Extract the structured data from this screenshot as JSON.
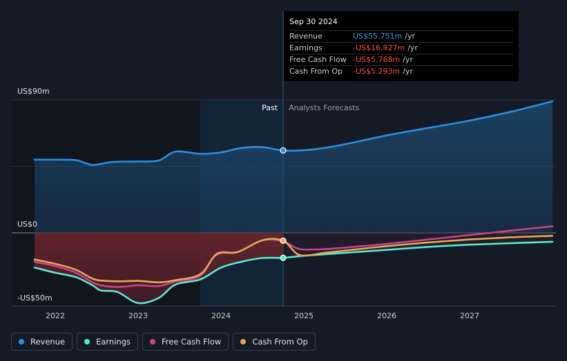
{
  "tooltip": {
    "date": "Sep 30 2024",
    "rows": [
      {
        "label": "Revenue",
        "value": "US$55.751m",
        "unit": "/yr",
        "color": "#3b9be8"
      },
      {
        "label": "Earnings",
        "value": "-US$16.927m",
        "unit": "/yr",
        "color": "#ff4d4d"
      },
      {
        "label": "Free Cash Flow",
        "value": "-US$5.768m",
        "unit": "/yr",
        "color": "#ff4d4d"
      },
      {
        "label": "Cash From Op",
        "value": "-US$5.293m",
        "unit": "/yr",
        "color": "#ff4d4d"
      }
    ]
  },
  "labels": {
    "past": "Past",
    "forecast": "Analysts Forecasts"
  },
  "legend": [
    {
      "label": "Revenue",
      "color": "#2e8ee0"
    },
    {
      "label": "Earnings",
      "color": "#5ee8d0"
    },
    {
      "label": "Free Cash Flow",
      "color": "#c8458a"
    },
    {
      "label": "Cash From Op",
      "color": "#e6a85a"
    }
  ],
  "chart_data": {
    "type": "line",
    "y_tick_labels": [
      "US$90m",
      "US$0",
      "-US$50m"
    ],
    "ylim": [
      -50,
      90
    ],
    "x_tick_labels": [
      "2022",
      "2023",
      "2024",
      "2025",
      "2026",
      "2027"
    ],
    "x_ticks": [
      2022.0,
      2023.0,
      2024.0,
      2025.0,
      2026.0,
      2027.0
    ],
    "xlim": [
      2021.5,
      2028.0
    ],
    "past_end": 2024.75,
    "shade_start": 2023.75,
    "series": [
      {
        "name": "Revenue",
        "color": "#2e8ee0",
        "x": [
          2021.75,
          2022.0,
          2022.25,
          2022.4,
          2022.5,
          2022.7,
          2023.0,
          2023.25,
          2023.45,
          2023.75,
          2024.0,
          2024.25,
          2024.5,
          2024.75,
          2025.0,
          2025.25,
          2025.5,
          2025.75,
          2026.0,
          2026.5,
          2027.0,
          2027.5,
          2028.0
        ],
        "y": [
          49.5,
          49.5,
          49.2,
          46.5,
          46.2,
          48.0,
          48.3,
          49.0,
          55.0,
          53.5,
          54.5,
          57.5,
          58.0,
          55.8,
          55.9,
          57.5,
          60.0,
          63.0,
          66.0,
          71.0,
          76.0,
          82.0,
          89.0
        ]
      },
      {
        "name": "Earnings",
        "color": "#5ee8d0",
        "x": [
          2021.75,
          2022.0,
          2022.25,
          2022.45,
          2022.55,
          2022.75,
          2023.0,
          2023.25,
          2023.45,
          2023.75,
          2024.0,
          2024.25,
          2024.5,
          2024.75,
          2025.0,
          2025.5,
          2026.0,
          2026.5,
          2027.0,
          2027.5,
          2028.0
        ],
        "y": [
          -23.5,
          -27.0,
          -30.0,
          -35.5,
          -39.0,
          -40.0,
          -47.5,
          -44.0,
          -35.0,
          -31.5,
          -23.5,
          -19.5,
          -17.0,
          -16.9,
          -15.5,
          -13.5,
          -11.5,
          -9.5,
          -8.0,
          -7.0,
          -6.0
        ]
      },
      {
        "name": "Free Cash Flow",
        "color": "#c8458a",
        "x": [
          2021.75,
          2022.0,
          2022.25,
          2022.45,
          2022.6,
          2022.8,
          2023.0,
          2023.25,
          2023.45,
          2023.75,
          2023.95,
          2024.2,
          2024.5,
          2024.75,
          2024.95,
          2025.25,
          2025.5,
          2026.0,
          2026.5,
          2027.0,
          2027.5,
          2028.0
        ],
        "y": [
          -19.5,
          -22.5,
          -27.0,
          -33.5,
          -36.0,
          -36.5,
          -35.5,
          -36.0,
          -33.0,
          -29.0,
          -14.0,
          -13.0,
          -5.0,
          -5.8,
          -11.0,
          -11.0,
          -10.0,
          -7.5,
          -4.5,
          -1.5,
          1.5,
          4.5
        ]
      },
      {
        "name": "Cash From Op",
        "color": "#e6a85a",
        "x": [
          2021.75,
          2022.0,
          2022.25,
          2022.45,
          2022.6,
          2022.8,
          2023.0,
          2023.25,
          2023.45,
          2023.75,
          2023.95,
          2024.2,
          2024.5,
          2024.75,
          2024.95,
          2025.25,
          2025.5,
          2026.0,
          2026.5,
          2027.0,
          2027.5,
          2028.0
        ],
        "y": [
          -18.0,
          -21.0,
          -25.0,
          -31.0,
          -32.5,
          -32.8,
          -32.5,
          -33.5,
          -32.0,
          -28.0,
          -14.5,
          -13.0,
          -5.0,
          -5.3,
          -15.0,
          -13.5,
          -12.0,
          -9.0,
          -6.5,
          -4.5,
          -3.0,
          -2.0
        ]
      }
    ]
  }
}
